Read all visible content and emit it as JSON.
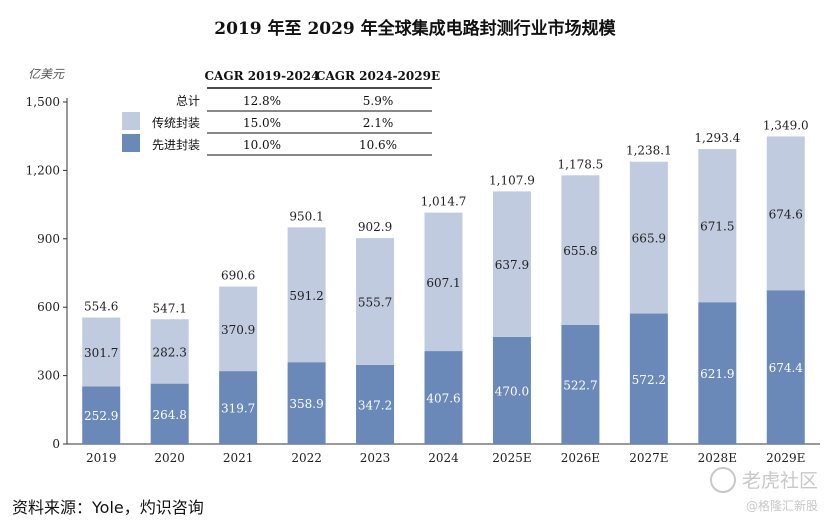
{
  "chart_data": {
    "type": "bar",
    "stacked": true,
    "title": "2019 年至 2029 年全球集成电路封测行业市场规模",
    "ylabel": "亿美元",
    "ylim": [
      0,
      1500
    ],
    "yticks": [
      "0",
      "300",
      "600",
      "900",
      "1,200",
      "1,500"
    ],
    "categories": [
      "2019",
      "2020",
      "2021",
      "2022",
      "2023",
      "2024",
      "2025E",
      "2026E",
      "2027E",
      "2028E",
      "2029E"
    ],
    "series": [
      {
        "name": "先进封装",
        "color": "#6a88b8",
        "values": [
          252.9,
          264.8,
          319.7,
          358.9,
          347.2,
          407.6,
          470.0,
          522.7,
          572.2,
          621.9,
          674.4
        ],
        "labels": [
          "252.9",
          "264.8",
          "319.7",
          "358.9",
          "347.2",
          "407.6",
          "470.0",
          "522.7",
          "572.2",
          "621.9",
          "674.4"
        ]
      },
      {
        "name": "传统封装",
        "color": "#c0cbe0",
        "values": [
          301.7,
          282.3,
          370.9,
          591.2,
          555.7,
          607.1,
          637.9,
          655.8,
          665.9,
          671.5,
          674.6
        ],
        "labels": [
          "301.7",
          "282.3",
          "370.9",
          "591.2",
          "555.7",
          "607.1",
          "637.9",
          "655.8",
          "665.9",
          "671.5",
          "674.6"
        ]
      }
    ],
    "totals": [
      554.6,
      547.1,
      690.6,
      950.1,
      902.9,
      1014.7,
      1107.9,
      1178.5,
      1238.1,
      1293.4,
      1349.0
    ],
    "total_labels": [
      "554.6",
      "547.1",
      "690.6",
      "950.1",
      "902.9",
      "1,014.7",
      "1,107.9",
      "1,178.5",
      "1,238.1",
      "1,293.4",
      "1,349.0"
    ],
    "grid": false,
    "legend_position": "top-left"
  },
  "cagr_table": {
    "headers": [
      "CAGR 2019-2024",
      "CAGR 2024-2029E"
    ],
    "rows": [
      {
        "label": "总计",
        "values": [
          "12.8%",
          "5.9%"
        ]
      },
      {
        "label": "传统封装",
        "values": [
          "15.0%",
          "2.1%"
        ]
      },
      {
        "label": "先进封装",
        "values": [
          "10.0%",
          "10.6%"
        ]
      }
    ]
  },
  "source": "资料来源：Yole，灼识咨询",
  "watermark": {
    "line1": "老虎社区",
    "line2": "@格隆汇新股"
  }
}
